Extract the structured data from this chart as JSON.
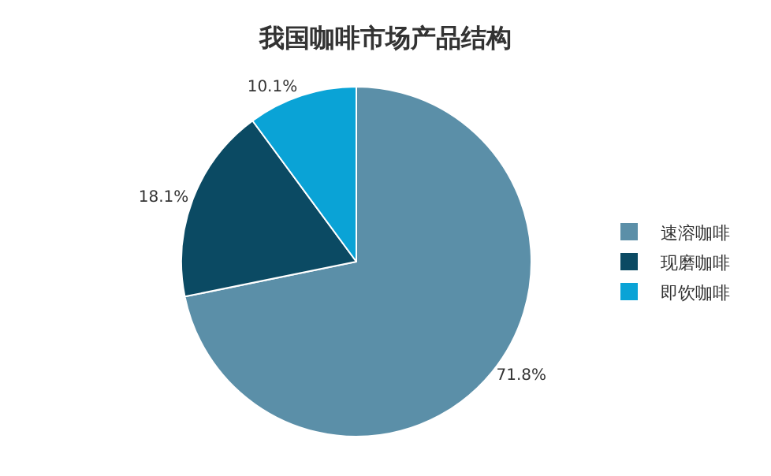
{
  "chart_data": {
    "type": "pie",
    "title": "我国咖啡市场产品结构",
    "categories": [
      "速溶咖啡",
      "现磨咖啡",
      "即饮咖啡"
    ],
    "values": [
      71.8,
      18.1,
      10.1
    ],
    "value_labels": [
      "71.8%",
      "18.1%",
      "10.1%"
    ],
    "colors": [
      "#5b8fa8",
      "#0b4a63",
      "#0aa3d6"
    ],
    "legend": "right"
  }
}
